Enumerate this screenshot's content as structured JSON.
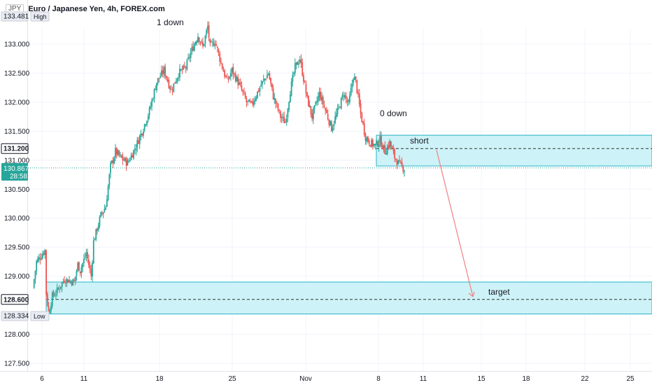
{
  "header": {
    "currency_badge": "JPY",
    "title": "Euro / Japanese Yen, 4h, FOREX.com"
  },
  "price_axis": {
    "ticks": [
      "133.000",
      "132.500",
      "132.000",
      "131.500",
      "131.000",
      "130.500",
      "130.000",
      "129.500",
      "129.000",
      "128.000",
      "127.500"
    ],
    "tick_values": [
      133.0,
      132.5,
      132.0,
      131.5,
      131.0,
      130.5,
      130.0,
      129.5,
      129.0,
      128.0,
      127.5
    ],
    "high_label": "133.481",
    "high_tag": "High",
    "low_label": "128.334",
    "low_tag": "Low",
    "short_level_label": "131.200",
    "target_level_label": "128.600",
    "current_price_label": "130.867",
    "countdown_label": "28:58"
  },
  "time_axis": {
    "labels": [
      "6",
      "11",
      "18",
      "25",
      "Nov",
      "8",
      "11",
      "15",
      "18",
      "22",
      "25"
    ]
  },
  "annotations": {
    "wave_1": "1 down",
    "wave_0": "0 down",
    "short_zone": "short",
    "target_zone": "target"
  },
  "chart_data": {
    "type": "candlestick",
    "title": "Euro / Japanese Yen, 4h, FOREX.com",
    "ylim": [
      127.35,
      133.65
    ],
    "session_high": 133.481,
    "session_low": 128.334,
    "last_price": 130.867,
    "zones": [
      {
        "name": "short",
        "low": 130.9,
        "high": 131.43,
        "level": 131.2
      },
      {
        "name": "target",
        "low": 128.35,
        "high": 128.9,
        "level": 128.6
      }
    ],
    "projection": {
      "from_price": 131.2,
      "to_price": 128.6
    },
    "path_points": [
      [
        0,
        128.8
      ],
      [
        3,
        129.25
      ],
      [
        10,
        129.45
      ],
      [
        11,
        128.7
      ],
      [
        13,
        128.36
      ],
      [
        16,
        128.65
      ],
      [
        20,
        128.75
      ],
      [
        26,
        128.95
      ],
      [
        34,
        128.9
      ],
      [
        37,
        129.2
      ],
      [
        39,
        129.1
      ],
      [
        44,
        129.4
      ],
      [
        48,
        129.0
      ],
      [
        50,
        129.6
      ],
      [
        56,
        130.05
      ],
      [
        60,
        130.2
      ],
      [
        64,
        130.9
      ],
      [
        66,
        131.0
      ],
      [
        68,
        131.15
      ],
      [
        72,
        131.05
      ],
      [
        78,
        130.95
      ],
      [
        84,
        131.2
      ],
      [
        90,
        131.5
      ],
      [
        96,
        131.85
      ],
      [
        102,
        132.35
      ],
      [
        108,
        132.55
      ],
      [
        114,
        132.2
      ],
      [
        120,
        132.5
      ],
      [
        126,
        132.6
      ],
      [
        130,
        132.85
      ],
      [
        136,
        133.15
      ],
      [
        140,
        132.95
      ],
      [
        144,
        133.3
      ],
      [
        146,
        132.95
      ],
      [
        150,
        133.05
      ],
      [
        156,
        132.6
      ],
      [
        160,
        132.35
      ],
      [
        164,
        132.55
      ],
      [
        170,
        132.3
      ],
      [
        176,
        132.0
      ],
      [
        180,
        131.95
      ],
      [
        188,
        132.3
      ],
      [
        194,
        132.5
      ],
      [
        198,
        132.1
      ],
      [
        204,
        131.75
      ],
      [
        208,
        131.65
      ],
      [
        212,
        132.2
      ],
      [
        216,
        132.6
      ],
      [
        220,
        132.75
      ],
      [
        226,
        132.05
      ],
      [
        230,
        131.75
      ],
      [
        236,
        132.15
      ],
      [
        242,
        131.8
      ],
      [
        246,
        131.55
      ],
      [
        252,
        131.9
      ],
      [
        256,
        132.15
      ],
      [
        260,
        131.95
      ],
      [
        264,
        132.45
      ],
      [
        266,
        132.35
      ],
      [
        270,
        131.8
      ],
      [
        274,
        131.4
      ],
      [
        278,
        131.3
      ],
      [
        282,
        131.25
      ],
      [
        286,
        131.35
      ],
      [
        290,
        131.15
      ],
      [
        294,
        131.3
      ],
      [
        298,
        131.05
      ],
      [
        302,
        130.92
      ],
      [
        306,
        130.85
      ]
    ]
  },
  "colors": {
    "up": "#26a69a",
    "down": "#ef5350",
    "zone_fill": "#cdf2f7",
    "zone_border": "#26b4c8",
    "projection": "#f08080",
    "label_dark": "#131722",
    "label_teal": "#26a69a"
  }
}
